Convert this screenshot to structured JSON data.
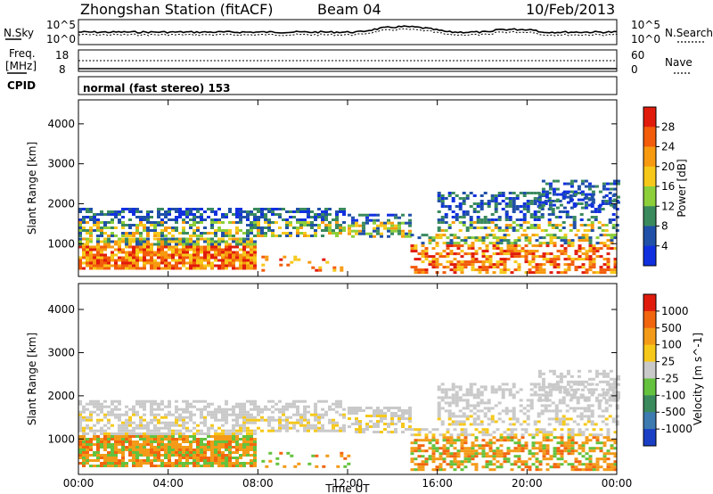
{
  "header": {
    "title": "Zhongshan Station (fitACF)",
    "beam": "Beam 04",
    "date": "10/Feb/2013"
  },
  "strip_labels": {
    "nsky": "N.Sky",
    "nsearch": "N.Search",
    "freq": "Freq.",
    "freq_unit": "[MHz]",
    "nave": "Nave",
    "cpid": "CPID",
    "cpid_value": "normal (fast stereo) 153"
  },
  "noise_axis": {
    "left_top": "10^5",
    "left_bottom": "10^0",
    "right_top": "10^5",
    "right_bottom": "10^0"
  },
  "freq_axis": {
    "left_top": "18",
    "left_bottom": "8",
    "right_top": "60",
    "right_bottom": "0"
  },
  "chart_data": [
    {
      "type": "heatmap",
      "name": "power-panel",
      "ylabel": "Slant Range [km]",
      "ylim": [
        180,
        4600
      ],
      "yticks": [
        "1000",
        "2000",
        "3000",
        "4000"
      ],
      "colorbar_label": "Power [dB]",
      "colorbar_ticks": [
        "4",
        "8",
        "12",
        "16",
        "20",
        "24",
        "28"
      ],
      "colorbar_colors": [
        "#1030e0",
        "#2050a8",
        "#3a8a5e",
        "#8ccf3a",
        "#f6c81a",
        "#f79a10",
        "#f25c0a",
        "#e11b0c"
      ],
      "colorbar_range": [
        0,
        32
      ]
    },
    {
      "type": "heatmap",
      "name": "velocity-panel",
      "ylabel": "Slant Range [km]",
      "ylim": [
        180,
        4600
      ],
      "yticks": [
        "1000",
        "2000",
        "3000",
        "4000"
      ],
      "colorbar_label": "Velocity [m s^-1]",
      "colorbar_ticks": [
        "1000",
        "500",
        "100",
        "25",
        "-25",
        "-100",
        "-500",
        "-1000"
      ],
      "colorbar_colors": [
        "#1a3fc4",
        "#3c7ab0",
        "#3a8a5e",
        "#64c23e",
        "#c9c9c9",
        "#f6c81a",
        "#f39b18",
        "#f2650f",
        "#e11b0c"
      ]
    }
  ],
  "xaxis": {
    "label": "Time UT",
    "ticks": [
      "00:00",
      "04:00",
      "08:00",
      "12:00",
      "16:00",
      "20:00",
      "00:00"
    ],
    "range_hours": [
      0,
      24
    ]
  }
}
